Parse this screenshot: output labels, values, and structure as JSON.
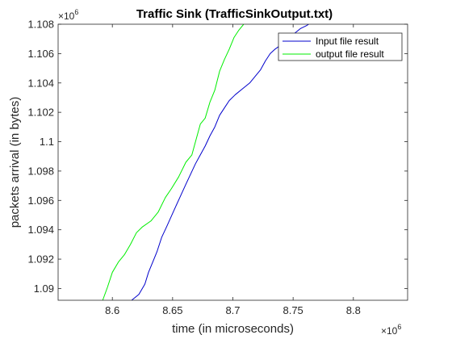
{
  "chart_data": {
    "type": "line",
    "title": "Traffic Sink (TrafficSinkOutput.txt)",
    "xlabel": "time (in microseconds)",
    "ylabel": "packets arrival (in bytes)",
    "x_multiplier": "×10",
    "x_exponent": "6",
    "y_multiplier": "×10",
    "y_exponent": "6",
    "xlim": [
      8.555,
      8.845
    ],
    "ylim": [
      1.0892,
      1.108
    ],
    "x_ticks": [
      8.6,
      8.65,
      8.7,
      8.75,
      8.8
    ],
    "x_tick_labels": [
      "8.6",
      "8.65",
      "8.7",
      "8.75",
      "8.8"
    ],
    "y_ticks": [
      1.09,
      1.092,
      1.094,
      1.096,
      1.098,
      1.1,
      1.102,
      1.104,
      1.106,
      1.108
    ],
    "y_tick_labels": [
      "1.09",
      "1.092",
      "1.094",
      "1.096",
      "1.098",
      "1.1",
      "1.102",
      "1.104",
      "1.106",
      "1.108"
    ],
    "grid": false,
    "legend_position": "top-right",
    "series": [
      {
        "name": "Input file result",
        "color": "#0000cc",
        "x": [
          8.616,
          8.622,
          8.627,
          8.63,
          8.634,
          8.637,
          8.641,
          8.645,
          8.651,
          8.656,
          8.661,
          8.665,
          8.669,
          8.673,
          8.677,
          8.681,
          8.685,
          8.689,
          8.693,
          8.697,
          8.702,
          8.708,
          8.714,
          8.719,
          8.723,
          8.727,
          8.731,
          8.735,
          8.74,
          8.745,
          8.75,
          8.756,
          8.761,
          8.763
        ],
        "y": [
          1.0892,
          1.0896,
          1.0903,
          1.0911,
          1.0919,
          1.0925,
          1.0935,
          1.0942,
          1.0953,
          1.0962,
          1.0971,
          1.0978,
          1.0985,
          1.0991,
          1.0997,
          1.1004,
          1.101,
          1.1018,
          1.1023,
          1.1028,
          1.1032,
          1.1036,
          1.104,
          1.1045,
          1.1049,
          1.1055,
          1.106,
          1.1063,
          1.1066,
          1.1069,
          1.1073,
          1.1077,
          1.1079,
          1.108
        ]
      },
      {
        "name": "output file result",
        "color": "#00ee00",
        "x": [
          8.592,
          8.596,
          8.6,
          8.605,
          8.61,
          8.615,
          8.62,
          8.625,
          8.632,
          8.638,
          8.644,
          8.649,
          8.655,
          8.661,
          8.666,
          8.669,
          8.673,
          8.677,
          8.681,
          8.685,
          8.689,
          8.693,
          8.697,
          8.701,
          8.705,
          8.709
        ],
        "y": [
          1.0892,
          1.0901,
          1.0911,
          1.0918,
          1.0923,
          1.093,
          1.0938,
          1.0942,
          1.0946,
          1.0952,
          1.0962,
          1.0968,
          1.0976,
          1.0986,
          1.0991,
          1.1,
          1.1012,
          1.1016,
          1.1027,
          1.1035,
          1.1048,
          1.1056,
          1.1063,
          1.1071,
          1.1076,
          1.108
        ]
      }
    ]
  }
}
